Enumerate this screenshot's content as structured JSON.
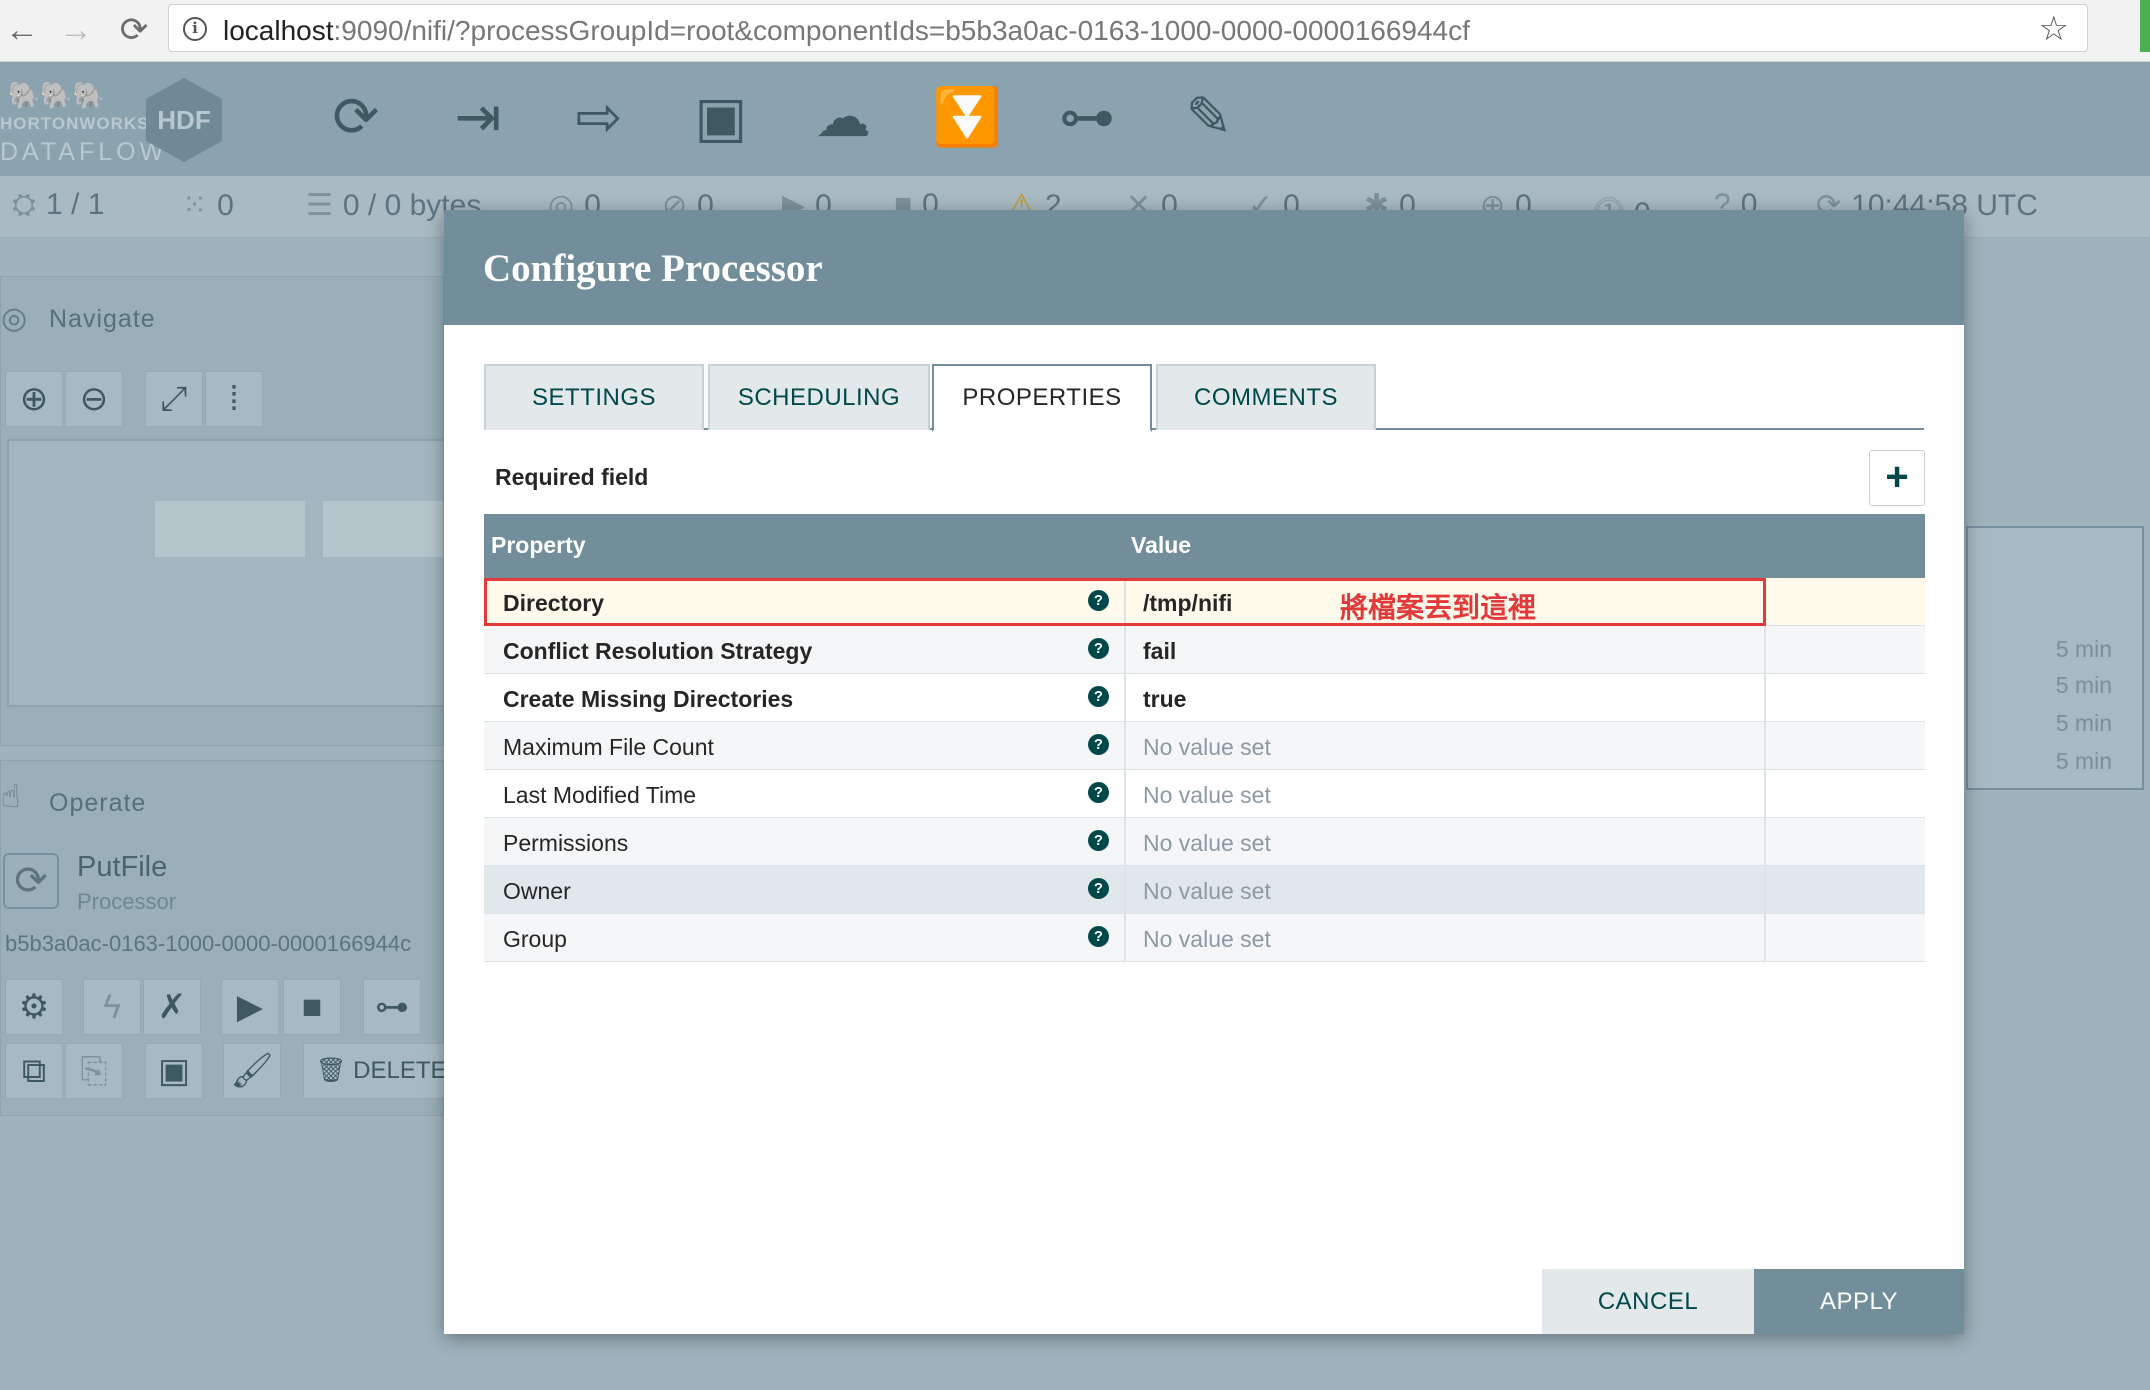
{
  "browser": {
    "back_icon": "←",
    "forward_icon": "→",
    "reload_icon": "⟳",
    "url_host": "localhost",
    "url_rest": ":9090/nifi/?processGroupId=root&componentIds=b5b3a0ac-0163-1000-0000-0000166944cf",
    "star_icon": "☆"
  },
  "header": {
    "logo_line1": "HORTONWORKS",
    "logo_line2": "DATAFLOW",
    "badge": "HDF"
  },
  "status": {
    "components": "1 / 1",
    "groups": "0",
    "queued": "0 / 0 bytes",
    "transmitting": "0",
    "not_transmitting": "0",
    "running": "0",
    "stopped": "0",
    "invalid": "2",
    "disabled": "0",
    "up_to_date": "0",
    "locally_modified": "0",
    "stale": "0",
    "modified_stale": "0",
    "sync_failure": "0",
    "time": "10:44:58 UTC"
  },
  "navigate": {
    "title": "Navigate"
  },
  "operate": {
    "title": "Operate",
    "component_name": "PutFile",
    "component_type": "Processor",
    "component_id": "b5b3a0ac-0163-1000-0000-0000166944c",
    "delete_label": "DELETE"
  },
  "right_panel": {
    "times": [
      "5 min",
      "5 min",
      "5 min",
      "5 min"
    ]
  },
  "dialog": {
    "title": "Configure Processor",
    "tabs": [
      "SETTINGS",
      "SCHEDULING",
      "PROPERTIES",
      "COMMENTS"
    ],
    "active_tab": "PROPERTIES",
    "required_label": "Required field",
    "add_label": "+",
    "columns": {
      "property": "Property",
      "value": "Value"
    },
    "help_glyph": "?",
    "rows": [
      {
        "name": "Directory",
        "value": "/tmp/nifi"
      },
      {
        "name": "Conflict Resolution Strategy",
        "value": "fail"
      },
      {
        "name": "Create Missing Directories",
        "value": "true"
      },
      {
        "name": "Maximum File Count",
        "value": "No value set"
      },
      {
        "name": "Last Modified Time",
        "value": "No value set"
      },
      {
        "name": "Permissions",
        "value": "No value set"
      },
      {
        "name": "Owner",
        "value": "No value set"
      },
      {
        "name": "Group",
        "value": "No value set"
      }
    ],
    "annotation": "將檔案丟到這裡",
    "cancel_label": "CANCEL",
    "apply_label": "APPLY"
  },
  "colors": {
    "dialog_header": "#728e9b",
    "accent_text": "#004849",
    "annotation_red": "#e23a3a"
  }
}
